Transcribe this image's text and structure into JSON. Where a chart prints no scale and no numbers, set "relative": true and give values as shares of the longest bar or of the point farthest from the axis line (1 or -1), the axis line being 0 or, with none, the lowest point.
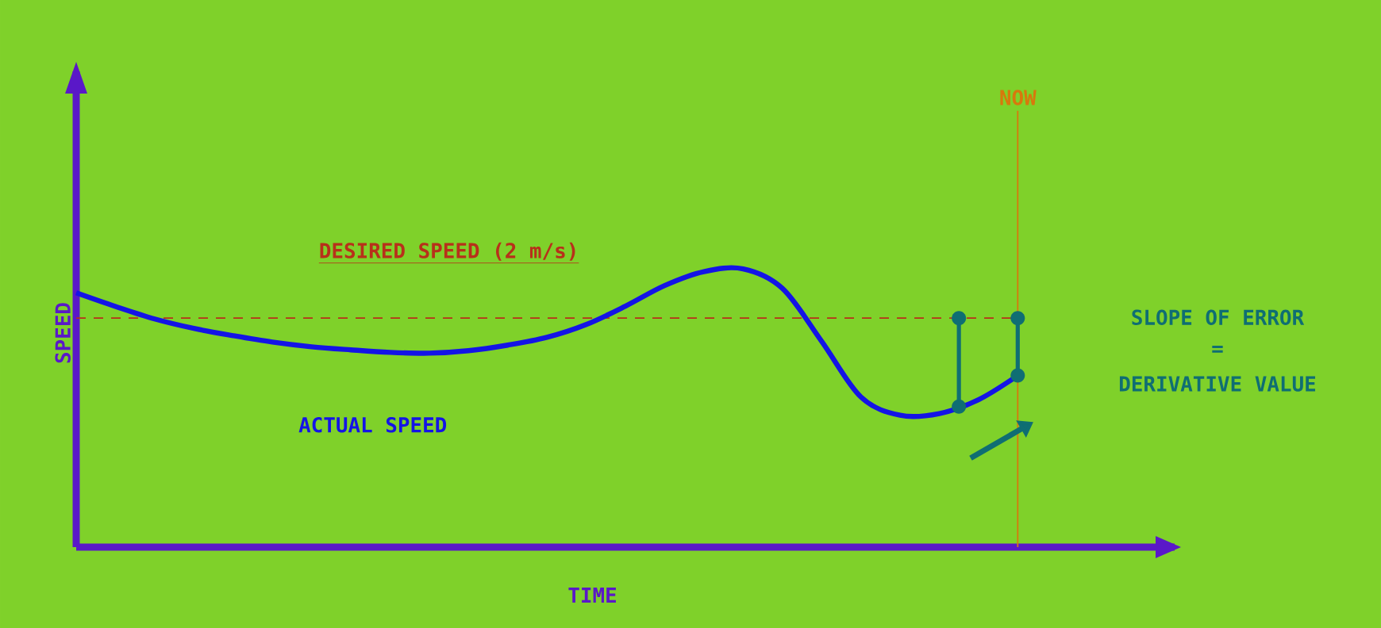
{
  "chart_data": {
    "type": "line",
    "relative": true,
    "xlabel": "TIME",
    "ylabel": "SPEED",
    "legend": false,
    "marker": "none",
    "line_style": "solid",
    "categories": [
      null,
      null,
      null,
      null,
      null,
      null,
      null,
      null,
      null,
      null,
      null,
      null,
      null,
      null,
      null,
      null,
      null,
      null,
      null,
      null,
      null,
      null,
      null,
      null,
      null,
      null,
      null,
      null,
      null
    ],
    "series": [
      {
        "name": "ACTUAL SPEED",
        "color": "#1414e6",
        "values": [
          0.914,
          0.865,
          0.82,
          0.786,
          0.76,
          0.737,
          0.72,
          0.709,
          0.7,
          0.697,
          0.706,
          0.726,
          0.754,
          0.8,
          0.866,
          0.94,
          0.99,
          1,
          0.93,
          0.74,
          0.54,
          0.474,
          0.48,
          0.53,
          0.617,
          null,
          null,
          null,
          null
        ]
      }
    ],
    "ref_lines": [
      {
        "axis": "y",
        "value": 0.823,
        "label": "DESIRED SPEED (2 m/s)",
        "color": "#b8301a",
        "line_style": "dashed"
      }
    ],
    "annotations": [
      "NOW",
      "SLOPE OF ERROR",
      "=",
      "DERIVATIVE VALUE"
    ]
  }
}
